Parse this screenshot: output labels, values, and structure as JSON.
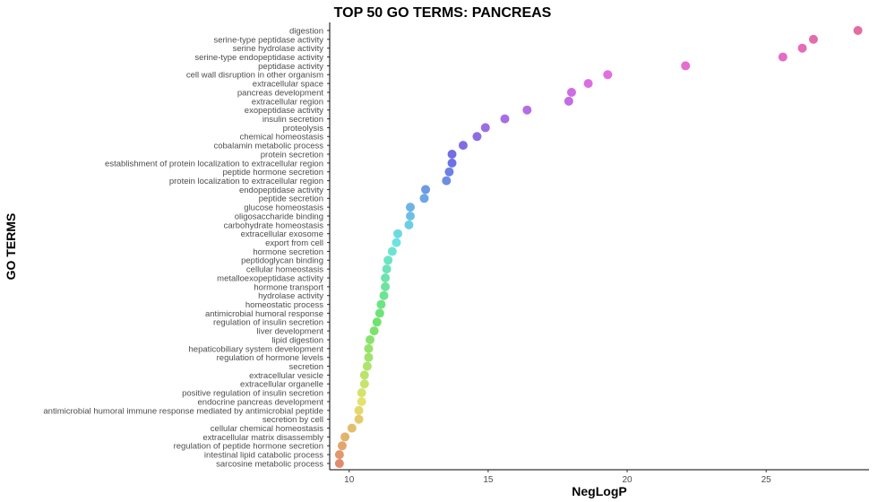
{
  "chart_data": {
    "type": "scatter",
    "title": "TOP 50 GO TERMS: PANCREAS",
    "xlabel": "NegLogP",
    "ylabel": "GO TERMS",
    "xlim": [
      9.3,
      28.7
    ],
    "xticks": [
      10,
      15,
      20,
      25
    ],
    "grid": false,
    "legend": "none",
    "points": [
      {
        "term": "digestion",
        "value": 28.3,
        "color": "#F8766D"
      },
      {
        "term": "serine-type peptidase activity",
        "value": 26.7,
        "color": "#F8766D"
      },
      {
        "term": "serine hydrolase activity",
        "value": 26.3,
        "color": "#F8766D"
      },
      {
        "term": "serine-type endopeptidase activity",
        "value": 25.6,
        "color": "#F8766D"
      },
      {
        "term": "peptidase activity",
        "value": 22.1,
        "color": "#F8766D"
      },
      {
        "term": "cell wall disruption in other organism",
        "value": 19.3,
        "color": "#F8766D"
      },
      {
        "term": "extracellular space",
        "value": 18.6,
        "color": "#F8766D"
      },
      {
        "term": "pancreas development",
        "value": 18.0,
        "color": "#F8766D"
      },
      {
        "term": "extracellular region",
        "value": 17.9,
        "color": "#F8766D"
      },
      {
        "term": "exopeptidase activity",
        "value": 16.4,
        "color": "#F8766D"
      },
      {
        "term": "insulin secretion",
        "value": 15.6,
        "color": "#F8766D"
      },
      {
        "term": "proteolysis",
        "value": 14.9,
        "color": "#F8766D"
      },
      {
        "term": "chemical homeostasis",
        "value": 14.6,
        "color": "#F8766D"
      },
      {
        "term": "cobalamin metabolic process",
        "value": 14.1,
        "color": "#F8766D"
      },
      {
        "term": "protein secretion",
        "value": 13.7,
        "color": "#F8766D"
      },
      {
        "term": "establishment of protein localization to extracellular region",
        "value": 13.7,
        "color": "#F8766D"
      },
      {
        "term": "peptide hormone secretion",
        "value": 13.6,
        "color": "#F8766D"
      },
      {
        "term": "protein localization to extracellular region",
        "value": 13.5,
        "color": "#F8766D"
      },
      {
        "term": "endopeptidase activity",
        "value": 12.75,
        "color": "#F8766D"
      },
      {
        "term": "peptide secretion",
        "value": 12.7,
        "color": "#F8766D"
      },
      {
        "term": "glucose homeostasis",
        "value": 12.2,
        "color": "#F8766D"
      },
      {
        "term": "oligosaccharide binding",
        "value": 12.2,
        "color": "#F8766D"
      },
      {
        "term": "carbohydrate homeostasis",
        "value": 12.15,
        "color": "#F8766D"
      },
      {
        "term": "extracellular exosome",
        "value": 11.75,
        "color": "#F8766D"
      },
      {
        "term": "export from cell",
        "value": 11.7,
        "color": "#F8766D"
      },
      {
        "term": "hormone secretion",
        "value": 11.55,
        "color": "#F8766D"
      },
      {
        "term": "peptidoglycan binding",
        "value": 11.4,
        "color": "#F8766D"
      },
      {
        "term": "cellular homeostasis",
        "value": 11.35,
        "color": "#F8766D"
      },
      {
        "term": "metalloexopeptidase activity",
        "value": 11.3,
        "color": "#F8766D"
      },
      {
        "term": "hormone transport",
        "value": 11.3,
        "color": "#F8766D"
      },
      {
        "term": "hydrolase activity",
        "value": 11.25,
        "color": "#F8766D"
      },
      {
        "term": "homeostatic process",
        "value": 11.15,
        "color": "#F8766D"
      },
      {
        "term": "antimicrobial humoral response",
        "value": 11.1,
        "color": "#F8766D"
      },
      {
        "term": "regulation of insulin secretion",
        "value": 11.0,
        "color": "#F8766D"
      },
      {
        "term": "liver development",
        "value": 10.9,
        "color": "#F8766D"
      },
      {
        "term": "lipid digestion",
        "value": 10.75,
        "color": "#F8766D"
      },
      {
        "term": "hepaticobiliary system development",
        "value": 10.7,
        "color": "#F8766D"
      },
      {
        "term": "regulation of hormone levels",
        "value": 10.7,
        "color": "#F8766D"
      },
      {
        "term": "secretion",
        "value": 10.65,
        "color": "#F8766D"
      },
      {
        "term": "extracellular vesicle",
        "value": 10.55,
        "color": "#F8766D"
      },
      {
        "term": "extracellular organelle",
        "value": 10.55,
        "color": "#F8766D"
      },
      {
        "term": "positive regulation of insulin secretion",
        "value": 10.45,
        "color": "#F8766D"
      },
      {
        "term": "endocrine pancreas development",
        "value": 10.45,
        "color": "#F8766D"
      },
      {
        "term": "antimicrobial humoral immune response mediated by antimicrobial peptide",
        "value": 10.35,
        "color": "#F8766D"
      },
      {
        "term": "secretion by cell",
        "value": 10.35,
        "color": "#F8766D"
      },
      {
        "term": "cellular chemical homeostasis",
        "value": 10.1,
        "color": "#F8766D"
      },
      {
        "term": "extracellular matrix disassembly",
        "value": 9.85,
        "color": "#F8766D"
      },
      {
        "term": "regulation of peptide hormone secretion",
        "value": 9.75,
        "color": "#F8766D"
      },
      {
        "term": "intestinal lipid catabolic process",
        "value": 9.65,
        "color": "#F8766D"
      },
      {
        "term": "sarcosine metabolic process",
        "value": 9.65,
        "color": "#F8766D"
      }
    ]
  }
}
